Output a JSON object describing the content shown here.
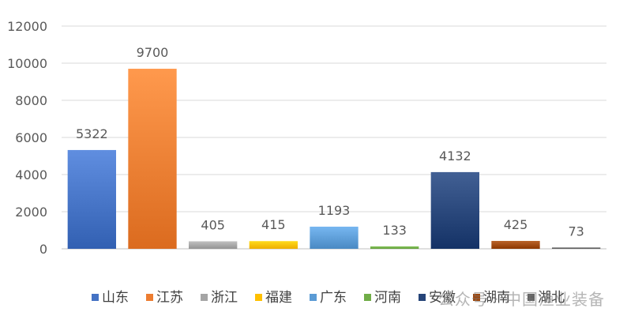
{
  "chart_data": {
    "type": "bar",
    "categories": [
      "山东",
      "江苏",
      "浙江",
      "福建",
      "广东",
      "河南",
      "安徽",
      "湖南",
      "湖北"
    ],
    "values": [
      5322,
      9700,
      405,
      415,
      1193,
      133,
      4132,
      425,
      73
    ],
    "colors": [
      "#4472c4",
      "#ed7d31",
      "#a5a5a5",
      "#ffc000",
      "#5b9bd5",
      "#70ad47",
      "#264478",
      "#9e480e",
      "#636363"
    ],
    "ylim": [
      0,
      12000
    ],
    "yticks": [
      0,
      2000,
      4000,
      6000,
      8000,
      10000,
      12000
    ],
    "grid": true,
    "legend_position": "bottom",
    "data_labels": true
  },
  "watermark": {
    "text": "公众号 · 中国渔业装备"
  }
}
